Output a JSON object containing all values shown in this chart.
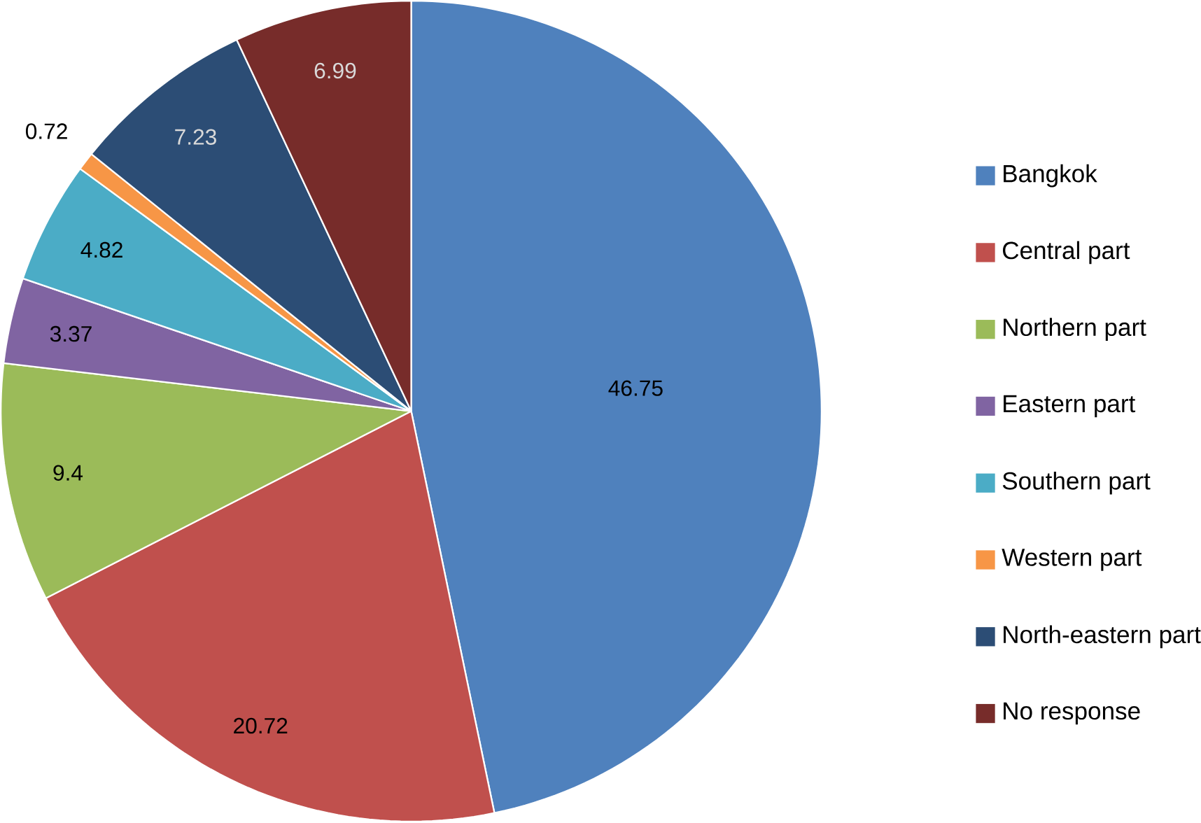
{
  "chart_data": {
    "type": "pie",
    "categories": [
      "Bangkok",
      "Central part",
      "Northern part",
      "Eastern part",
      "Southern part",
      "Western part",
      "North-eastern part",
      "No response"
    ],
    "values": [
      46.75,
      20.72,
      9.4,
      3.37,
      4.82,
      0.72,
      7.23,
      6.99
    ],
    "colors": [
      "#4f81bd",
      "#c0504d",
      "#9bbb59",
      "#8064a2",
      "#4bacc6",
      "#f79646",
      "#2c4d75",
      "#772c2a"
    ],
    "data_labels": true,
    "legend": "right"
  }
}
